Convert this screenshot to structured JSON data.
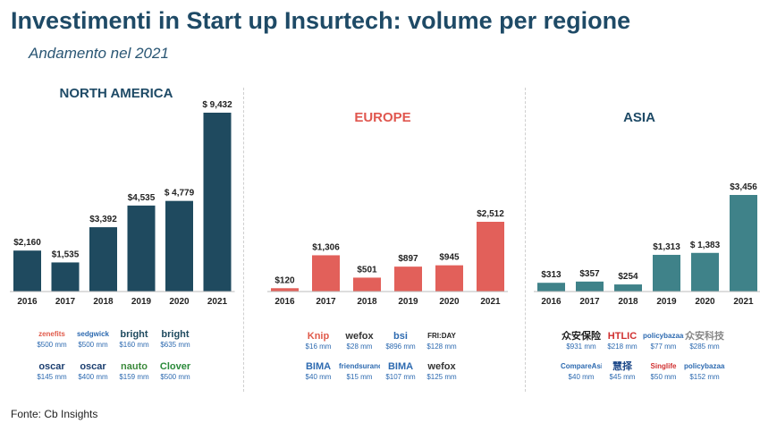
{
  "header": {
    "title": "Investimenti in Start up Insurtech: volume per regione",
    "subtitle": "Andamento nel 2021"
  },
  "source": "Fonte: Cb Insights",
  "colors": {
    "north_america": "#1f4a5f",
    "europe": "#e2605a",
    "asia": "#3f8289",
    "title": "#1e4a66",
    "europe_title": "#e0574f",
    "amount": "#2d6ab0"
  },
  "chart_data": [
    {
      "type": "bar",
      "title": "NORTH AMERICA",
      "categories": [
        "2016",
        "2017",
        "2018",
        "2019",
        "2020",
        "2021"
      ],
      "values": [
        2160,
        1535,
        3392,
        4535,
        4779,
        9432
      ],
      "data_labels": [
        "$2,160",
        "$1,535",
        "$3,392",
        "$4,535",
        "$ 4,779",
        "$ 9,432"
      ],
      "ylim": [
        0,
        9432
      ]
    },
    {
      "type": "bar",
      "title": "EUROPE",
      "categories": [
        "2016",
        "2017",
        "2018",
        "2019",
        "2020",
        "2021"
      ],
      "values": [
        120,
        1306,
        501,
        897,
        945,
        2512
      ],
      "data_labels": [
        "$120",
        "$1,306",
        "$501",
        "$897",
        "$945",
        "$2,512"
      ],
      "ylim": [
        0,
        2512
      ]
    },
    {
      "type": "bar",
      "title": "ASIA",
      "categories": [
        "2016",
        "2017",
        "2018",
        "2019",
        "2020",
        "2021"
      ],
      "values": [
        313,
        357,
        254,
        1313,
        1383,
        3456
      ],
      "data_labels": [
        "$313",
        "$357",
        "$254",
        "$1,313",
        "$ 1,383",
        "$3,456"
      ],
      "ylim": [
        0,
        3456
      ]
    }
  ],
  "logos": {
    "north_america": [
      {
        "name": "zenefits",
        "amount": "$500 mm",
        "color": "#e05a4a"
      },
      {
        "name": "sedgwick",
        "amount": "$500 mm",
        "color": "#2d6ab0"
      },
      {
        "name": "bright",
        "amount": "$160 mm",
        "color": "#1f4a5f"
      },
      {
        "name": "bright",
        "amount": "$635 mm",
        "color": "#1f4a5f"
      },
      {
        "name": "oscar",
        "amount": "$145 mm",
        "color": "#1c3f70"
      },
      {
        "name": "oscar",
        "amount": "$400 mm",
        "color": "#1c3f70"
      },
      {
        "name": "nauto",
        "amount": "$159 mm",
        "color": "#3c8a3c"
      },
      {
        "name": "Clover",
        "amount": "$500 mm",
        "color": "#2a8a3a"
      }
    ],
    "europe": [
      {
        "name": "Knip",
        "amount": "$16 mm",
        "color": "#e05a4a"
      },
      {
        "name": "wefox",
        "amount": "$28 mm",
        "color": "#333333"
      },
      {
        "name": "bsi",
        "amount": "$896 mm",
        "color": "#2d6ab0"
      },
      {
        "name": "FRI:DAY",
        "amount": "$128 mm",
        "color": "#222222"
      },
      {
        "name": "BIMA",
        "amount": "$40 mm",
        "color": "#2d6ab0"
      },
      {
        "name": "friendsurance",
        "amount": "$15 mm",
        "color": "#2d6ab0"
      },
      {
        "name": "BIMA",
        "amount": "$107 mm",
        "color": "#2d6ab0"
      },
      {
        "name": "wefox",
        "amount": "$125 mm",
        "color": "#333333"
      }
    ],
    "asia": [
      {
        "name": "众安保险",
        "amount": "$931 mm",
        "color": "#222222"
      },
      {
        "name": "HTLIC",
        "amount": "$218 mm",
        "color": "#d03030"
      },
      {
        "name": "policybazaar",
        "amount": "$77 mm",
        "color": "#2d6ab0"
      },
      {
        "name": "众安科技",
        "amount": "$285 mm",
        "color": "#888888"
      },
      {
        "name": "CompareAsia",
        "amount": "$40 mm",
        "color": "#2d6ab0"
      },
      {
        "name": "慧择",
        "amount": "$45 mm",
        "color": "#1f4a8a"
      },
      {
        "name": "Singlife",
        "amount": "$50 mm",
        "color": "#d03030"
      },
      {
        "name": "policybazaar",
        "amount": "$152 mm",
        "color": "#2d6ab0"
      }
    ]
  }
}
